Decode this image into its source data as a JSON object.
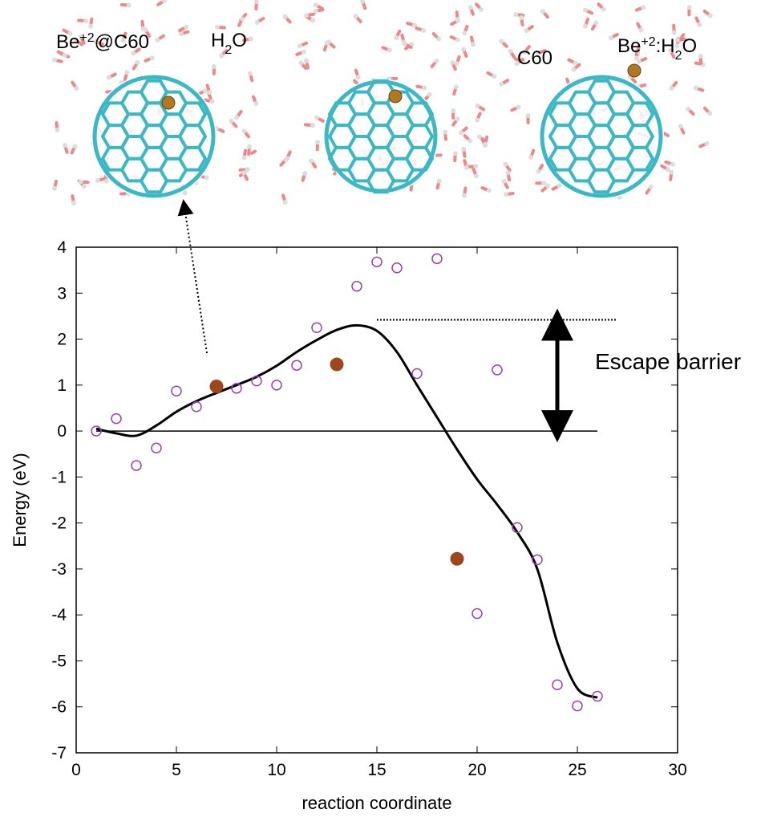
{
  "chart_data": {
    "type": "scatter",
    "xlabel": "reaction coordinate",
    "ylabel": "Energy (eV)",
    "xlim": [
      0,
      30
    ],
    "ylim": [
      -7,
      4
    ],
    "xticks": [
      0,
      5,
      10,
      15,
      20,
      25,
      30
    ],
    "yticks": [
      -7,
      -6,
      -5,
      -4,
      -3,
      -2,
      -1,
      0,
      1,
      2,
      3,
      4
    ],
    "series": [
      {
        "marker": "open",
        "color": "#9b3fb5",
        "x": [
          1,
          2,
          3,
          4,
          5,
          6,
          8,
          9,
          10,
          11,
          12,
          14,
          15,
          16,
          17,
          18,
          20,
          21,
          22,
          23,
          24,
          25,
          26
        ],
        "values": [
          0,
          0.27,
          -0.75,
          -0.37,
          0.87,
          0.53,
          0.93,
          1.09,
          1.0,
          1.43,
          2.25,
          3.15,
          3.68,
          3.55,
          1.25,
          3.75,
          -3.97,
          1.33,
          -2.1,
          -2.8,
          -5.52,
          -5.98,
          -5.77
        ]
      },
      {
        "marker": "filled",
        "color": "#a0461c",
        "x": [
          7,
          13,
          19
        ],
        "values": [
          0.97,
          1.45,
          -2.78
        ]
      },
      {
        "marker": "line",
        "color": "#000000",
        "x": [
          1,
          2,
          3,
          4,
          5,
          6,
          7,
          8,
          9,
          10,
          11,
          12,
          13,
          14,
          15,
          16,
          17,
          18,
          19,
          20,
          21,
          22,
          23,
          24,
          25,
          26
        ],
        "values": [
          0.05,
          -0.05,
          -0.1,
          0.12,
          0.42,
          0.65,
          0.83,
          1.0,
          1.18,
          1.42,
          1.72,
          1.98,
          2.2,
          2.3,
          2.18,
          1.72,
          1.0,
          0.3,
          -0.4,
          -1.05,
          -1.6,
          -2.2,
          -3.0,
          -4.6,
          -5.6,
          -5.8
        ]
      }
    ],
    "escape_barrier": {
      "text": "Escape barrier",
      "value": 2.42
    },
    "panels": [
      {
        "labels": [
          [
            {
              "text": "Be"
            },
            {
              "text": "+2",
              "style": "sup"
            },
            {
              "text": "@C60"
            }
          ],
          [
            {
              "text": "H"
            },
            {
              "text": "2",
              "style": "sub"
            },
            {
              "text": "O"
            }
          ]
        ]
      },
      {
        "labels": []
      },
      {
        "labels": [
          [
            {
              "text": "C60"
            }
          ],
          [
            {
              "text": "Be"
            },
            {
              "text": "+2",
              "style": "sup"
            },
            {
              "text": ":H"
            },
            {
              "text": "2",
              "style": "sub"
            },
            {
              "text": "O"
            }
          ]
        ]
      }
    ]
  }
}
